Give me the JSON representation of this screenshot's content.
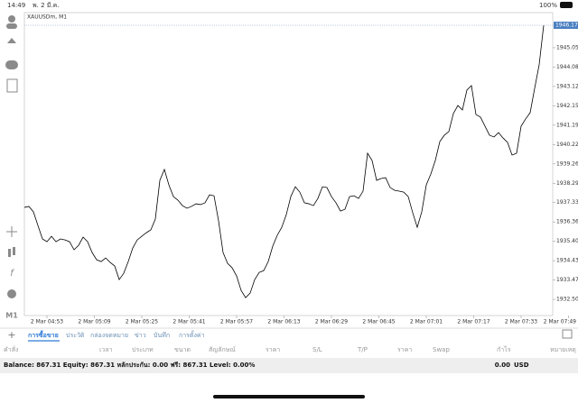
{
  "status_bar": {
    "time": "14:49",
    "date": "พ. 2 มี.ค.",
    "battery": "100%"
  },
  "timeframe": "M1",
  "chart_data": {
    "type": "line",
    "title": "XAUUSDm, M1",
    "color": "#000000",
    "values": [
      1937.09,
      1937.14,
      1936.87,
      1936.19,
      1935.52,
      1935.38,
      1935.65,
      1935.38,
      1935.52,
      1935.47,
      1935.38,
      1934.98,
      1935.2,
      1935.61,
      1935.38,
      1934.84,
      1934.48,
      1934.39,
      1934.57,
      1934.35,
      1934.17,
      1933.49,
      1933.81,
      1934.39,
      1935.07,
      1935.47,
      1935.65,
      1935.83,
      1935.97,
      1936.51,
      1938.44,
      1938.98,
      1938.21,
      1937.63,
      1937.45,
      1937.18,
      1937.05,
      1937.14,
      1937.27,
      1937.23,
      1937.32,
      1937.72,
      1937.67,
      1936.42,
      1934.84,
      1934.3,
      1934.08,
      1933.67,
      1932.95,
      1932.59,
      1932.82,
      1933.49,
      1933.85,
      1933.94,
      1934.39,
      1935.16,
      1935.7,
      1936.1,
      1936.73,
      1937.63,
      1938.12,
      1937.85,
      1937.32,
      1937.27,
      1937.18,
      1937.54,
      1938.12,
      1938.08,
      1937.63,
      1937.32,
      1936.91,
      1937.0,
      1937.63,
      1937.67,
      1937.54,
      1937.9,
      1939.79,
      1939.43,
      1938.44,
      1938.53,
      1938.57,
      1938.08,
      1937.94,
      1937.9,
      1937.85,
      1937.63,
      1936.82,
      1936.1,
      1936.87,
      1938.21,
      1938.75,
      1939.43,
      1940.37,
      1940.69,
      1940.87,
      1941.77,
      1942.17,
      1941.95,
      1942.94,
      1943.16,
      1941.72,
      1941.59,
      1941.14,
      1940.69,
      1940.6,
      1940.82,
      1940.55,
      1940.33,
      1939.7,
      1939.79,
      1941.14,
      1941.5,
      1941.81,
      1943.03,
      1944.2,
      1946.17
    ],
    "xlim": [
      0,
      117
    ],
    "xticks": [
      {
        "value": 5,
        "label": "2 Mar 04:53"
      },
      {
        "value": 15.5,
        "label": "2 Mar 05:09"
      },
      {
        "value": 26,
        "label": "2 Mar 05:25"
      },
      {
        "value": 36.5,
        "label": "2 Mar 05:41"
      },
      {
        "value": 47,
        "label": "2 Mar 05:57"
      },
      {
        "value": 57.5,
        "label": "2 Mar 06:13"
      },
      {
        "value": 68,
        "label": "2 Mar 06:29"
      },
      {
        "value": 78.5,
        "label": "2 Mar 06:45"
      },
      {
        "value": 89,
        "label": "2 Mar 07:01"
      },
      {
        "value": 99.5,
        "label": "2 Mar 07:17"
      },
      {
        "value": 110,
        "label": "2 Mar 07:33"
      },
      {
        "value": 120.5,
        "label": "2 Mar 07:49"
      }
    ],
    "ylim": [
      1931.7,
      1946.8
    ],
    "yticks": [
      {
        "value": 1945.05,
        "label": "1945.050"
      },
      1944.085,
      {
        "value": 1943.12,
        "label": "1943.120"
      },
      1942.155,
      {
        "value": 1941.19,
        "label": "1941.190"
      },
      1940.225,
      {
        "value": 1939.26,
        "label": "1939.260"
      },
      1938.295,
      {
        "value": 1937.33,
        "label": "1937.330"
      },
      1936.365,
      {
        "value": 1935.4,
        "label": "1935.400"
      },
      1934.435,
      {
        "value": 1933.47,
        "label": "1933.470"
      },
      1932.505
    ],
    "current_price": {
      "value": 1946.17,
      "label": "1946.170"
    }
  },
  "tabs": [
    "การซื้อขาย",
    "ประวัติ",
    "กล่องจดหมาย",
    "ข่าว",
    "บันทึก",
    "การตั้งค่า"
  ],
  "columns": [
    "คำสั่ง",
    "เวลา",
    "ประเภท",
    "ขนาด",
    "สัญลักษณ์",
    "ราคา",
    "S/L",
    "T/P",
    "ราคา",
    "Swap",
    "กำไร",
    "หมายเหตุ"
  ],
  "account": {
    "summary": "Balance: 867.31 Equity: 867.31 หลักประกัน: 0.00 ฟรี: 867.31 Level: 0.00%",
    "profit": "0.00",
    "currency": "USD"
  }
}
